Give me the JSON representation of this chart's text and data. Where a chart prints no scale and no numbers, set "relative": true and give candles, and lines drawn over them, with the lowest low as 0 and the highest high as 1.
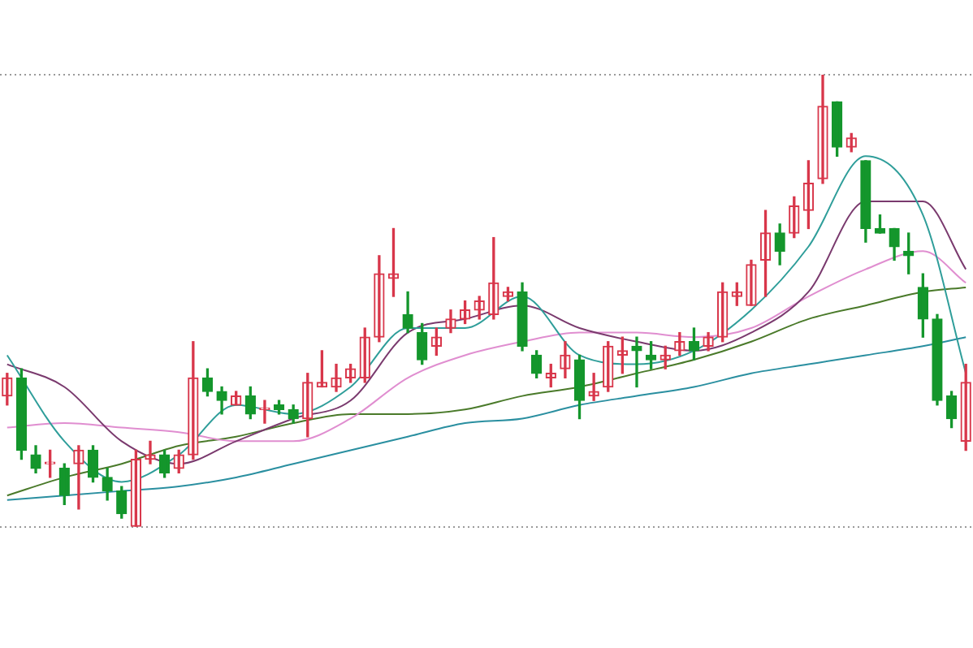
{
  "chart_data": {
    "type": "candlestick",
    "relative": true,
    "grid": "y",
    "legend": false,
    "categories": [
      null,
      null,
      null,
      null,
      null,
      null,
      null,
      null,
      null,
      null,
      null,
      null,
      null,
      null,
      null,
      null,
      null,
      null,
      null,
      null,
      null,
      null,
      null,
      null,
      null,
      null,
      null,
      null,
      null,
      null,
      null,
      null,
      null,
      null,
      null,
      null,
      null,
      null,
      null,
      null,
      null,
      null,
      null,
      null,
      null,
      null,
      null,
      null,
      null,
      null,
      null,
      null,
      null,
      null,
      null,
      null,
      null,
      null,
      null,
      null,
      null,
      null,
      null,
      null,
      null,
      null,
      null,
      null
    ],
    "ohlc": [
      [
        0.29,
        0.34,
        0.27,
        0.33
      ],
      [
        0.33,
        0.35,
        0.15,
        0.17
      ],
      [
        0.16,
        0.18,
        0.12,
        0.13
      ],
      [
        0.14,
        0.17,
        0.11,
        0.14
      ],
      [
        0.13,
        0.14,
        0.05,
        0.07
      ],
      [
        0.14,
        0.18,
        0.04,
        0.17
      ],
      [
        0.17,
        0.18,
        0.1,
        0.11
      ],
      [
        0.11,
        0.13,
        0.06,
        0.08
      ],
      [
        0.08,
        0.09,
        0.02,
        0.03
      ],
      [
        0.0,
        0.17,
        0.0,
        0.15
      ],
      [
        0.15,
        0.19,
        0.14,
        0.16
      ],
      [
        0.16,
        0.17,
        0.11,
        0.12
      ],
      [
        0.13,
        0.17,
        0.12,
        0.16
      ],
      [
        0.16,
        0.41,
        0.15,
        0.33
      ],
      [
        0.33,
        0.35,
        0.29,
        0.3
      ],
      [
        0.3,
        0.31,
        0.25,
        0.28
      ],
      [
        0.27,
        0.3,
        0.27,
        0.29
      ],
      [
        0.29,
        0.31,
        0.24,
        0.25
      ],
      [
        0.26,
        0.28,
        0.23,
        0.26
      ],
      [
        0.27,
        0.28,
        0.25,
        0.26
      ],
      [
        0.26,
        0.27,
        0.23,
        0.24
      ],
      [
        0.24,
        0.34,
        0.2,
        0.32
      ],
      [
        0.31,
        0.39,
        0.31,
        0.32
      ],
      [
        0.31,
        0.36,
        0.3,
        0.33
      ],
      [
        0.33,
        0.36,
        0.32,
        0.35
      ],
      [
        0.33,
        0.44,
        0.32,
        0.42
      ],
      [
        0.42,
        0.6,
        0.41,
        0.56
      ],
      [
        0.55,
        0.66,
        0.51,
        0.56
      ],
      [
        0.47,
        0.52,
        0.43,
        0.44
      ],
      [
        0.43,
        0.45,
        0.36,
        0.37
      ],
      [
        0.4,
        0.44,
        0.38,
        0.42
      ],
      [
        0.44,
        0.48,
        0.43,
        0.46
      ],
      [
        0.46,
        0.5,
        0.45,
        0.48
      ],
      [
        0.48,
        0.51,
        0.46,
        0.5
      ],
      [
        0.47,
        0.64,
        0.46,
        0.54
      ],
      [
        0.51,
        0.53,
        0.5,
        0.52
      ],
      [
        0.52,
        0.54,
        0.39,
        0.4
      ],
      [
        0.38,
        0.39,
        0.33,
        0.34
      ],
      [
        0.33,
        0.36,
        0.31,
        0.34
      ],
      [
        0.35,
        0.41,
        0.33,
        0.38
      ],
      [
        0.37,
        0.38,
        0.24,
        0.28
      ],
      [
        0.29,
        0.34,
        0.28,
        0.3
      ],
      [
        0.31,
        0.41,
        0.3,
        0.4
      ],
      [
        0.38,
        0.42,
        0.34,
        0.39
      ],
      [
        0.4,
        0.42,
        0.31,
        0.39
      ],
      [
        0.38,
        0.41,
        0.35,
        0.37
      ],
      [
        0.37,
        0.4,
        0.35,
        0.38
      ],
      [
        0.39,
        0.43,
        0.38,
        0.41
      ],
      [
        0.41,
        0.44,
        0.37,
        0.39
      ],
      [
        0.4,
        0.43,
        0.39,
        0.42
      ],
      [
        0.42,
        0.54,
        0.41,
        0.52
      ],
      [
        0.51,
        0.54,
        0.49,
        0.52
      ],
      [
        0.49,
        0.59,
        0.49,
        0.58
      ],
      [
        0.59,
        0.7,
        0.51,
        0.65
      ],
      [
        0.65,
        0.67,
        0.58,
        0.61
      ],
      [
        0.65,
        0.73,
        0.64,
        0.71
      ],
      [
        0.7,
        0.81,
        0.66,
        0.76
      ],
      [
        0.77,
        1.0,
        0.76,
        0.93
      ],
      [
        0.94,
        0.94,
        0.82,
        0.84
      ],
      [
        0.84,
        0.87,
        0.83,
        0.86
      ],
      [
        0.81,
        0.81,
        0.63,
        0.66
      ],
      [
        0.66,
        0.69,
        0.65,
        0.65
      ],
      [
        0.66,
        0.66,
        0.59,
        0.62
      ],
      [
        0.61,
        0.65,
        0.56,
        0.6
      ],
      [
        0.53,
        0.56,
        0.42,
        0.46
      ],
      [
        0.46,
        0.47,
        0.27,
        0.28
      ],
      [
        0.29,
        0.3,
        0.22,
        0.24
      ],
      [
        0.19,
        0.36,
        0.17,
        0.32
      ]
    ],
    "colors": [
      "#d8364a",
      "#14962c",
      "#14962c",
      "#d8364a",
      "#14962c",
      "#d8364a",
      "#14962c",
      "#14962c",
      "#14962c",
      "#d8364a",
      "#d8364a",
      "#14962c",
      "#d8364a",
      "#d8364a",
      "#14962c",
      "#14962c",
      "#d8364a",
      "#14962c",
      "#d8364a",
      "#14962c",
      "#14962c",
      "#d8364a",
      "#d8364a",
      "#d8364a",
      "#d8364a",
      "#d8364a",
      "#d8364a",
      "#d8364a",
      "#14962c",
      "#14962c",
      "#d8364a",
      "#d8364a",
      "#d8364a",
      "#d8364a",
      "#d8364a",
      "#d8364a",
      "#14962c",
      "#14962c",
      "#d8364a",
      "#d8364a",
      "#14962c",
      "#d8364a",
      "#d8364a",
      "#d8364a",
      "#14962c",
      "#14962c",
      "#d8364a",
      "#d8364a",
      "#14962c",
      "#d8364a",
      "#d8364a",
      "#d8364a",
      "#d8364a",
      "#d8364a",
      "#14962c",
      "#d8364a",
      "#d8364a",
      "#d8364a",
      "#14962c",
      "#d8364a",
      "#14962c",
      "#14962c",
      "#14962c",
      "#14962c",
      "#14962c",
      "#14962c",
      "#14962c",
      "#d8364a"
    ],
    "series": [
      {
        "type": "line",
        "color": "#2f9e9a",
        "values": [
          0.38,
          null,
          null,
          null,
          0.19,
          null,
          null,
          null,
          0.1,
          null,
          null,
          null,
          0.16,
          null,
          null,
          null,
          0.27,
          null,
          null,
          null,
          0.25,
          null,
          null,
          null,
          0.31,
          null,
          null,
          null,
          0.44,
          null,
          null,
          null,
          0.44,
          null,
          null,
          null,
          0.51,
          null,
          null,
          null,
          0.38,
          null,
          null,
          null,
          0.36,
          null,
          null,
          null,
          0.39,
          null,
          null,
          null,
          0.48,
          null,
          null,
          null,
          0.62,
          null,
          null,
          null,
          0.82,
          null,
          null,
          null,
          0.69,
          null,
          null,
          0.34
        ]
      },
      {
        "type": "line",
        "color": "#7a3a6e",
        "values": [
          0.36,
          null,
          null,
          null,
          0.31,
          null,
          null,
          null,
          0.19,
          null,
          null,
          null,
          0.14,
          null,
          null,
          null,
          0.19,
          null,
          null,
          null,
          0.24,
          null,
          null,
          null,
          0.28,
          null,
          null,
          null,
          0.43,
          null,
          null,
          null,
          0.46,
          null,
          null,
          null,
          0.49,
          null,
          null,
          null,
          0.44,
          null,
          null,
          null,
          0.41,
          null,
          null,
          null,
          0.39,
          null,
          null,
          null,
          0.43,
          null,
          null,
          null,
          0.52,
          null,
          null,
          null,
          0.72,
          null,
          null,
          null,
          0.72,
          null,
          null,
          0.57
        ]
      },
      {
        "type": "line",
        "color": "#e08ed0",
        "values": [
          0.22,
          null,
          null,
          null,
          0.23,
          null,
          null,
          null,
          0.22,
          null,
          null,
          null,
          0.21,
          null,
          null,
          null,
          0.19,
          null,
          null,
          null,
          0.19,
          null,
          null,
          null,
          0.24,
          null,
          null,
          null,
          0.33,
          null,
          null,
          null,
          0.38,
          null,
          null,
          null,
          0.41,
          null,
          null,
          null,
          0.43,
          null,
          null,
          null,
          0.43,
          null,
          null,
          null,
          0.42,
          null,
          null,
          null,
          0.44,
          null,
          null,
          null,
          0.51,
          null,
          null,
          null,
          0.57,
          null,
          null,
          null,
          0.61,
          null,
          null,
          0.54
        ]
      },
      {
        "type": "line",
        "color": "#4a7a2a",
        "values": [
          0.07,
          null,
          null,
          null,
          0.11,
          null,
          null,
          null,
          0.14,
          null,
          null,
          null,
          0.18,
          null,
          null,
          null,
          0.2,
          null,
          null,
          null,
          0.23,
          null,
          null,
          null,
          0.25,
          null,
          null,
          null,
          0.25,
          null,
          null,
          null,
          0.26,
          null,
          null,
          null,
          0.29,
          null,
          null,
          null,
          0.31,
          null,
          null,
          null,
          0.34,
          null,
          null,
          null,
          0.37,
          null,
          null,
          null,
          0.41,
          null,
          null,
          null,
          0.46,
          null,
          null,
          null,
          0.49,
          null,
          null,
          null,
          0.52,
          null,
          null,
          0.53
        ]
      },
      {
        "type": "line",
        "color": "#2a8fa0",
        "values": [
          0.06,
          null,
          null,
          null,
          0.07,
          null,
          null,
          null,
          0.08,
          null,
          null,
          null,
          0.09,
          null,
          null,
          null,
          0.11,
          null,
          null,
          null,
          0.14,
          null,
          null,
          null,
          0.17,
          null,
          null,
          null,
          0.2,
          null,
          null,
          null,
          0.23,
          null,
          null,
          null,
          0.24,
          null,
          null,
          null,
          0.27,
          null,
          null,
          null,
          0.29,
          null,
          null,
          null,
          0.31,
          null,
          null,
          null,
          0.34,
          null,
          null,
          null,
          0.36,
          null,
          null,
          null,
          0.38,
          null,
          null,
          null,
          0.4,
          null,
          null,
          0.42
        ]
      }
    ]
  }
}
